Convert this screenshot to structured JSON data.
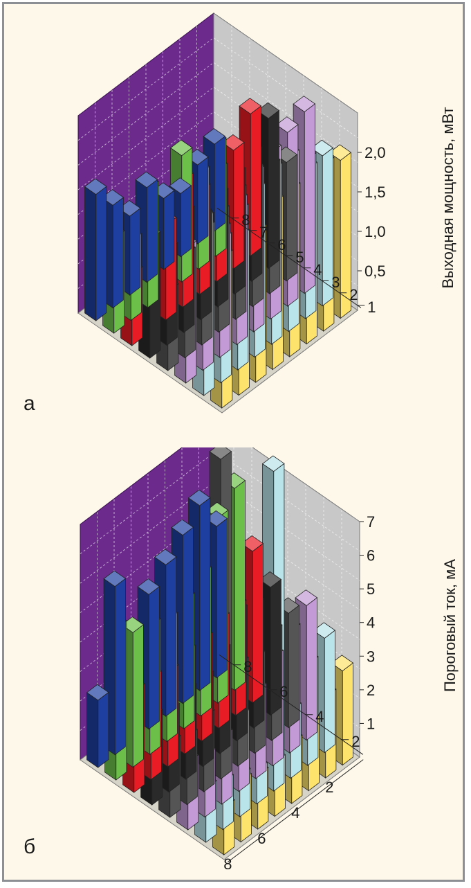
{
  "colors": {
    "background": "#fdf8e9",
    "frame": "#8c8f93",
    "back_wall": "#6b2a8c",
    "side_wall": "#c8c8c8",
    "grid": "#ffffff",
    "rows": [
      "#1f3fa0",
      "#6cc04a",
      "#e81c24",
      "#2a2a2a",
      "#555555",
      "#c39ad6",
      "#b9e4ea",
      "#fde36b"
    ]
  },
  "chart_data": [
    {
      "panel_label": "а",
      "type": "bar",
      "variant": "3d-bar-matrix",
      "title": "",
      "zlabel": "Выходная мощность, мВт",
      "z_ticks": [
        "0,5",
        "1,0",
        "1,5",
        "2,0"
      ],
      "zlim": [
        0,
        2.5
      ],
      "row_ticks": [
        "1",
        "2",
        "3",
        "4",
        "5",
        "6",
        "7",
        "8"
      ],
      "col_ticks": [],
      "series": [
        {
          "values": [
            1.6,
            1.3,
            1.0,
            1.2,
            0.9,
            0.8,
            1.0,
            1.1
          ]
        },
        {
          "values": [
            1.2,
            1.0,
            1.5,
            0.0,
            1.6,
            1.2,
            1.4,
            0.0
          ]
        },
        {
          "values": [
            0.9,
            0.0,
            1.2,
            1.6,
            1.3,
            1.4,
            1.5,
            1.8
          ]
        },
        {
          "values": [
            1.5,
            1.2,
            1.5,
            1.3,
            1.4,
            1.5,
            1.6,
            1.9
          ]
        },
        {
          "values": [
            1.0,
            1.3,
            1.6,
            1.5,
            1.6,
            1.7,
            1.6,
            1.5
          ]
        },
        {
          "values": [
            1.7,
            1.9,
            1.6,
            1.8,
            2.0,
            2.1,
            2.2,
            2.3
          ]
        },
        {
          "values": [
            2.1,
            1.8,
            2.0,
            2.1,
            2.2,
            2.2,
            2.0,
            1.9
          ]
        },
        {
          "values": [
            1.9,
            2.0,
            1.9,
            2.1,
            2.1,
            2.2,
            2.1,
            2.0
          ]
        }
      ]
    },
    {
      "panel_label": "б",
      "type": "bar",
      "variant": "3d-bar-matrix",
      "title": "",
      "zlabel": "Пороговый ток, мА",
      "z_ticks": [
        "1",
        "2",
        "3",
        "4",
        "5",
        "6",
        "7"
      ],
      "zlim": [
        0,
        7
      ],
      "row_ticks": [
        "2",
        "4",
        "6",
        "8"
      ],
      "col_ticks": [
        "2",
        "4",
        "6",
        "8"
      ],
      "series": [
        {
          "values": [
            2.0,
            5.0,
            0.0,
            4.0,
            4.5,
            5.0,
            5.5,
            4.5
          ]
        },
        {
          "values": [
            4.5,
            4.0,
            3.8,
            3.6,
            3.8,
            4.2,
            5.5,
            6.0
          ]
        },
        {
          "values": [
            3.0,
            3.0,
            2.8,
            3.0,
            3.0,
            3.2,
            3.2,
            4.5
          ]
        },
        {
          "values": [
            2.6,
            2.4,
            2.6,
            2.6,
            3.0,
            3.8,
            3.6,
            3.8
          ]
        },
        {
          "values": [
            2.2,
            2.0,
            2.2,
            9.5,
            3.0,
            2.8,
            3.2,
            3.4
          ]
        },
        {
          "values": [
            2.0,
            1.8,
            2.0,
            2.2,
            2.6,
            3.2,
            3.6,
            4.0
          ]
        },
        {
          "values": [
            1.6,
            1.4,
            1.2,
            1.0,
            9.5,
            2.0,
            3.0,
            3.4
          ]
        },
        {
          "values": [
            1.4,
            1.8,
            1.6,
            1.6,
            1.8,
            2.0,
            2.4,
            2.8
          ]
        }
      ]
    }
  ]
}
